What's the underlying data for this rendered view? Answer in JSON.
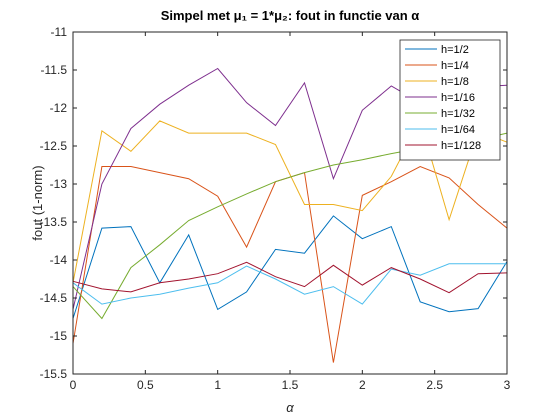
{
  "chart_data": {
    "type": "line",
    "title": "Simpel met μ₁ = 1*μ₂: fout in functie van α",
    "xlabel": "α",
    "ylabel": "fout (1-norm)",
    "xlim": [
      0,
      3
    ],
    "ylim": [
      -15.5,
      -11
    ],
    "xticks": [
      "0",
      "0.5",
      "1",
      "1.5",
      "2",
      "2.5",
      "3"
    ],
    "yticks": [
      "-11",
      "-11.5",
      "-12",
      "-12.5",
      "-13",
      "-13.5",
      "-14",
      "-14.5",
      "-15",
      "-15.5"
    ],
    "grid": false,
    "legend_position": "top-right",
    "x": [
      0,
      0.2,
      0.4,
      0.6,
      0.8,
      1.0,
      1.2,
      1.4,
      1.6,
      1.8,
      2.0,
      2.2,
      2.4,
      2.6,
      2.8,
      3.0
    ],
    "series": [
      {
        "name": "h=1/2",
        "color": "#0072BD",
        "values": [
          -14.77,
          -13.58,
          -13.56,
          -14.3,
          -13.67,
          -14.65,
          -14.42,
          -13.86,
          -13.91,
          -13.42,
          -13.72,
          -13.56,
          -14.55,
          -14.68,
          -14.64,
          -14.02
        ]
      },
      {
        "name": "h=1/4",
        "color": "#D95319",
        "values": [
          -15.1,
          -12.77,
          -12.77,
          -12.85,
          -12.93,
          -13.16,
          -13.83,
          -12.97,
          -12.85,
          -15.35,
          -13.15,
          -12.97,
          -12.77,
          -12.92,
          -13.27,
          -13.58
        ]
      },
      {
        "name": "h=1/8",
        "color": "#EDB120",
        "values": [
          -14.3,
          -12.3,
          -12.57,
          -12.17,
          -12.33,
          -12.33,
          -12.33,
          -12.48,
          -13.27,
          -13.27,
          -13.35,
          -12.9,
          -12.17,
          -13.47,
          -12.3,
          -12.45
        ]
      },
      {
        "name": "h=1/16",
        "color": "#7E2F8E",
        "values": [
          -14.65,
          -13.0,
          -12.27,
          -11.95,
          -11.7,
          -11.48,
          -11.93,
          -12.23,
          -11.67,
          -12.93,
          -12.03,
          -11.71,
          -11.93,
          -11.93,
          -11.72,
          -11.7
        ]
      },
      {
        "name": "h=1/32",
        "color": "#77AC30",
        "values": [
          -14.35,
          -14.77,
          -14.1,
          -13.8,
          -13.48,
          -13.3,
          -13.13,
          -12.97,
          -12.85,
          -12.75,
          -12.68,
          -12.6,
          -12.53,
          -12.47,
          -12.42,
          -12.33
        ]
      },
      {
        "name": "h=1/64",
        "color": "#4DBEEE",
        "values": [
          -14.3,
          -14.58,
          -14.5,
          -14.45,
          -14.37,
          -14.3,
          -14.08,
          -14.25,
          -14.45,
          -14.35,
          -14.58,
          -14.12,
          -14.2,
          -14.05,
          -14.05,
          -14.05
        ]
      },
      {
        "name": "h=1/128",
        "color": "#A2142F",
        "values": [
          -14.28,
          -14.38,
          -14.42,
          -14.3,
          -14.25,
          -14.18,
          -14.03,
          -14.22,
          -14.35,
          -14.07,
          -14.33,
          -14.1,
          -14.25,
          -14.43,
          -14.18,
          -14.17
        ]
      }
    ]
  }
}
